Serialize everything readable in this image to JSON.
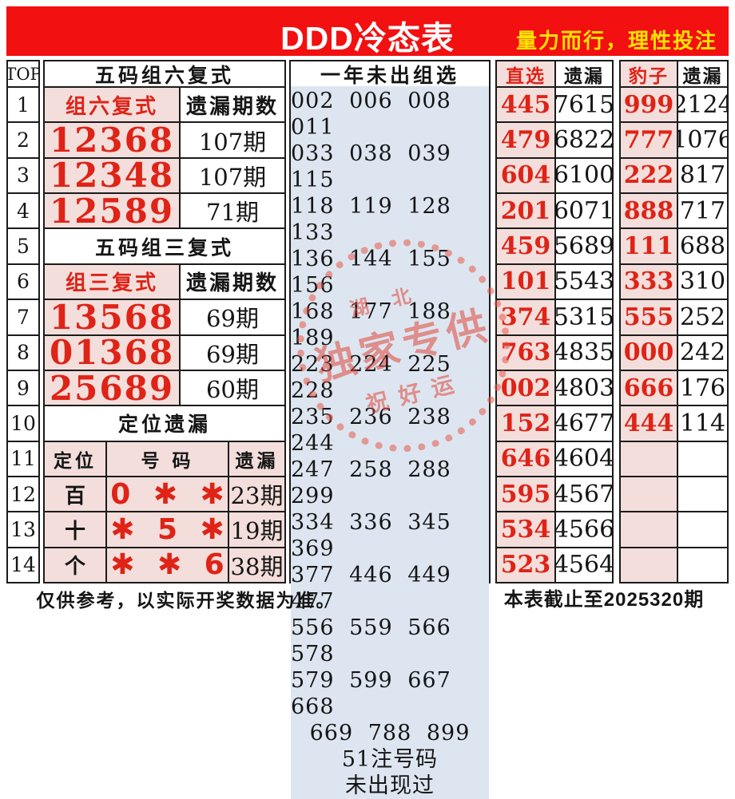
{
  "banner": {
    "title": "DDD冷态表",
    "slogan": "量力而行，理性投注",
    "bg_color": "#f21010",
    "title_color": "#ffffff",
    "slogan_color": "#ffe400"
  },
  "colors": {
    "pink_cell": "#f3dedb",
    "blue_panel": "#dde6f0",
    "red_text": "#df2317",
    "grid_line": "#1b1b1b"
  },
  "top_col": {
    "header": "TOP",
    "rows": [
      "1",
      "2",
      "3",
      "4",
      "5",
      "6",
      "7",
      "8",
      "9",
      "10",
      "11",
      "12",
      "13",
      "14"
    ]
  },
  "left": {
    "header": "五码组六复式",
    "group6_label": "组六复式",
    "miss_period_label": "遗漏期数",
    "group6": [
      [
        "12368",
        "107期"
      ],
      [
        "12348",
        "107期"
      ],
      [
        "12589",
        "71期"
      ]
    ],
    "section3_header": "五码组三复式",
    "group3_label": "组三复式",
    "group3": [
      [
        "13568",
        "69期"
      ],
      [
        "01368",
        "69期"
      ],
      [
        "25689",
        "60期"
      ]
    ],
    "position_header": "定位遗漏",
    "position_cols": [
      "定位",
      "号 码",
      "遗漏"
    ],
    "position_rows": [
      [
        "百",
        "0 ✱ ✱",
        "23期"
      ],
      [
        "十",
        "✱ 5 ✱",
        "19期"
      ],
      [
        "个",
        "✱ ✱ 6",
        "38期"
      ]
    ]
  },
  "middle": {
    "header": "一年未出组选",
    "lines": [
      "002 006 008 011",
      "033 038 039 115",
      "118 119 128 133",
      "136 144 155 156",
      "168 177 188 189",
      "223 224 225 228",
      "235 236 238 244",
      "247 258 288 299",
      "334 336 345 369",
      "377 446 449 477",
      "556 559 566 578",
      "579 599 667 668",
      "669 788 899",
      "51注号码",
      "未出现过"
    ]
  },
  "right": {
    "zhixuan_header": "直选",
    "zhixuan_miss_header": "遗漏",
    "zhixuan": [
      [
        "445",
        "7615"
      ],
      [
        "479",
        "6822"
      ],
      [
        "604",
        "6100"
      ],
      [
        "201",
        "6071"
      ],
      [
        "459",
        "5689"
      ],
      [
        "101",
        "5543"
      ],
      [
        "374",
        "5315"
      ],
      [
        "763",
        "4835"
      ],
      [
        "002",
        "4803"
      ],
      [
        "152",
        "4677"
      ],
      [
        "646",
        "4604"
      ],
      [
        "595",
        "4567"
      ],
      [
        "534",
        "4566"
      ],
      [
        "523",
        "4564"
      ]
    ],
    "baozi_header": "豹子",
    "baozi_miss_header": "遗漏",
    "baozi": [
      [
        "999",
        "2124"
      ],
      [
        "777",
        "1076"
      ],
      [
        "222",
        "817"
      ],
      [
        "888",
        "717"
      ],
      [
        "111",
        "688"
      ],
      [
        "333",
        "310"
      ],
      [
        "555",
        "252"
      ],
      [
        "000",
        "242"
      ],
      [
        "666",
        "176"
      ],
      [
        "444",
        "114"
      ],
      [
        "",
        ""
      ],
      [
        "",
        ""
      ],
      [
        "",
        ""
      ],
      [
        "",
        ""
      ]
    ]
  },
  "stamp": {
    "top": "湖北",
    "main": "独家专供",
    "bottom": "祝好运"
  },
  "footer": {
    "left": "仅供参考，以实际开奖数据为准。",
    "right": "本表截止至2025320期"
  }
}
